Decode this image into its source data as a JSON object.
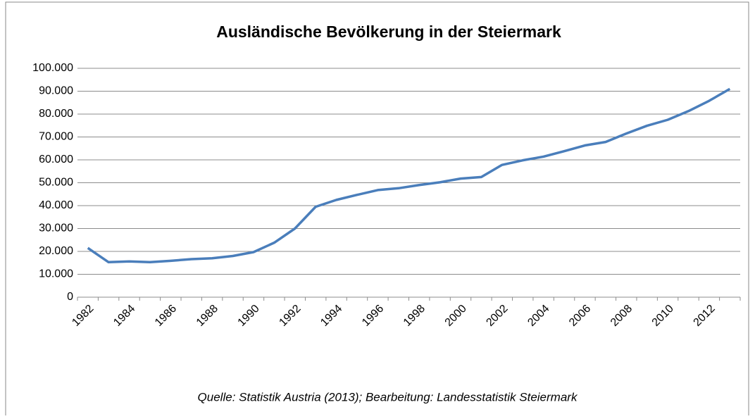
{
  "chart_data": {
    "type": "line",
    "title": "Ausländische Bevölkerung in der Steiermark",
    "source": "Quelle: Statistik Austria (2013); Bearbeitung: Landesstatistik Steiermark",
    "categories": [
      "1982",
      null,
      "1984",
      null,
      "1986",
      null,
      "1988",
      null,
      "1990",
      null,
      "1992",
      null,
      "1994",
      null,
      "1996",
      null,
      "1998",
      null,
      "2000",
      null,
      "2002",
      null,
      "2004",
      null,
      "2006",
      null,
      "2008",
      null,
      "2010",
      null,
      "2012",
      null
    ],
    "series": [
      {
        "name": "Ausländische Bevölkerung",
        "color": "#4a7ebb",
        "values": [
          21500,
          15300,
          15600,
          15300,
          15900,
          16600,
          17000,
          18000,
          19700,
          23800,
          30000,
          39500,
          42500,
          44700,
          46800,
          47600,
          49000,
          50200,
          51800,
          52500,
          57800,
          59800,
          61400,
          63800,
          66300,
          67800,
          71500,
          74900,
          77500,
          81300,
          85800,
          91000
        ]
      }
    ],
    "ylim": [
      0,
      100000
    ],
    "yticks": [
      0,
      {
        "value": 10000,
        "label": "10.000"
      },
      {
        "value": 20000,
        "label": "20.000"
      },
      {
        "value": 30000,
        "label": "30.000"
      },
      {
        "value": 40000,
        "label": "40.000"
      },
      {
        "value": 50000,
        "label": "50.000"
      },
      {
        "value": 60000,
        "label": "60.000"
      },
      {
        "value": 70000,
        "label": "70.000"
      },
      {
        "value": 80000,
        "label": "80.000"
      },
      {
        "value": 90000,
        "label": "90.000"
      },
      {
        "value": 100000,
        "label": "100.000"
      }
    ],
    "grid": true
  }
}
